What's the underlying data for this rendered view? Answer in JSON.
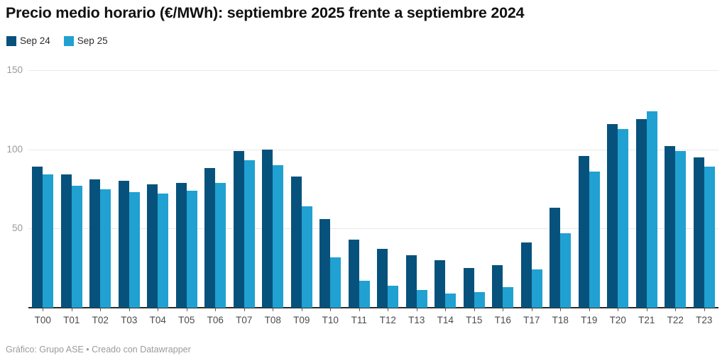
{
  "header": {
    "title": "Precio medio horario (€/MWh): septiembre 2025 frente a septiembre 2024"
  },
  "legend": {
    "items": [
      {
        "label": "Sep 24",
        "color": "#07527c"
      },
      {
        "label": "Sep 25",
        "color": "#20a1d1"
      }
    ]
  },
  "footer": {
    "prefix": "Gráfico: Grupo ASE • ",
    "link_text": "Creado con Datawrapper"
  },
  "colors": {
    "sep24": "#07527c",
    "sep25": "#20a1d1",
    "gridline": "#e9e9e9",
    "axis": "#2b2b2b"
  },
  "chart_data": {
    "type": "bar",
    "title": "Precio medio horario (€/MWh): septiembre 2025 frente a septiembre 2024",
    "xlabel": "",
    "ylabel": "",
    "ylim": [
      0,
      150
    ],
    "y_ticks": [
      150,
      100,
      50
    ],
    "grid": true,
    "legend_position": "top-left",
    "categories": [
      "T00",
      "T01",
      "T02",
      "T03",
      "T04",
      "T05",
      "T06",
      "T07",
      "T08",
      "T09",
      "T10",
      "T11",
      "T12",
      "T13",
      "T14",
      "T15",
      "T16",
      "T17",
      "T18",
      "T19",
      "T20",
      "T21",
      "T22",
      "T23"
    ],
    "series": [
      {
        "name": "Sep 24",
        "color": "#07527c",
        "values": [
          89,
          84,
          81,
          80,
          78,
          79,
          88,
          99,
          100,
          83,
          56,
          43,
          37,
          33,
          30,
          25,
          27,
          41,
          63,
          96,
          116,
          119,
          102,
          95
        ]
      },
      {
        "name": "Sep 25",
        "color": "#20a1d1",
        "values": [
          84,
          77,
          75,
          73,
          72,
          74,
          79,
          93,
          90,
          64,
          32,
          17,
          14,
          11,
          9,
          10,
          13,
          24,
          47,
          86,
          113,
          124,
          99,
          89
        ]
      }
    ]
  }
}
